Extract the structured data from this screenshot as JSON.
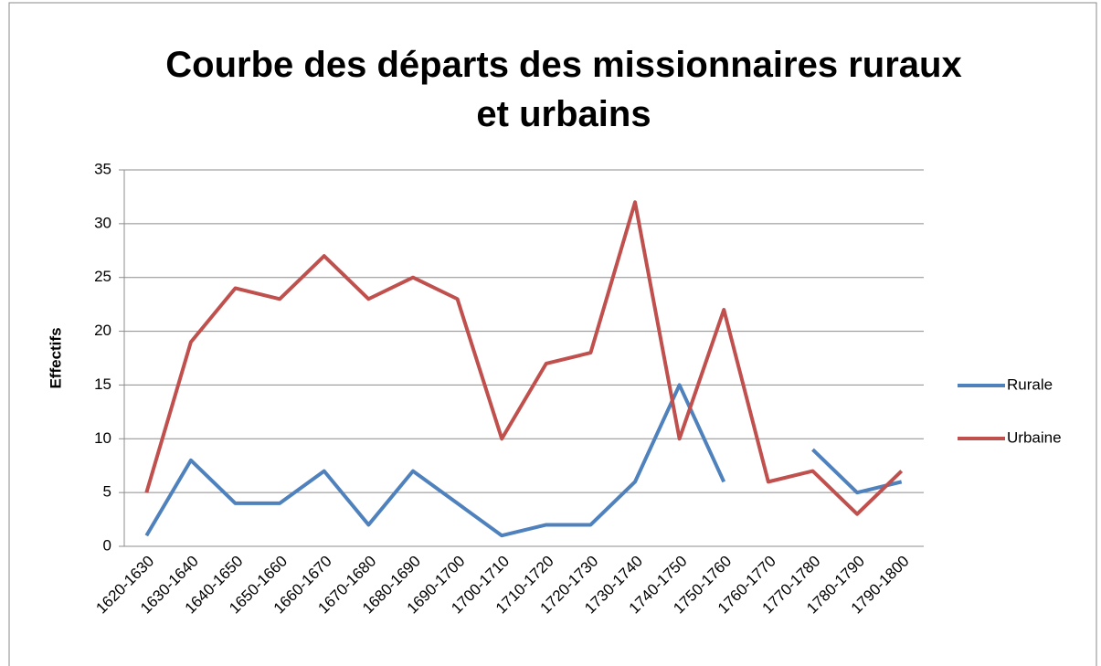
{
  "chart_data": {
    "type": "line",
    "title": "Courbe des départs des missionnaires ruraux et urbains",
    "y_label": "Effectifs",
    "categories": [
      "1620-1630",
      "1630-1640",
      "1640-1650",
      "1650-1660",
      "1660-1670",
      "1670-1680",
      "1680-1690",
      "1690-1700",
      "1700-1710",
      "1710-1720",
      "1720-1730",
      "1730-1740",
      "1740-1750",
      "1750-1760",
      "1760-1770",
      "1770-1780",
      "1780-1790",
      "1790-1800"
    ],
    "series": [
      {
        "name": "Rurale",
        "color": "#4f81bd",
        "values": [
          1,
          8,
          4,
          4,
          7,
          2,
          7,
          4,
          1,
          2,
          2,
          6,
          15,
          6,
          null,
          9,
          5,
          6
        ]
      },
      {
        "name": "Urbaine",
        "color": "#c0504d",
        "values": [
          5,
          19,
          24,
          23,
          27,
          23,
          25,
          23,
          10,
          17,
          18,
          32,
          10,
          22,
          6,
          7,
          3,
          7
        ]
      }
    ],
    "ylim": [
      0,
      35
    ],
    "yticks": [
      0,
      5,
      10,
      15,
      20,
      25,
      30,
      35
    ],
    "grid": true,
    "legend": "right"
  }
}
